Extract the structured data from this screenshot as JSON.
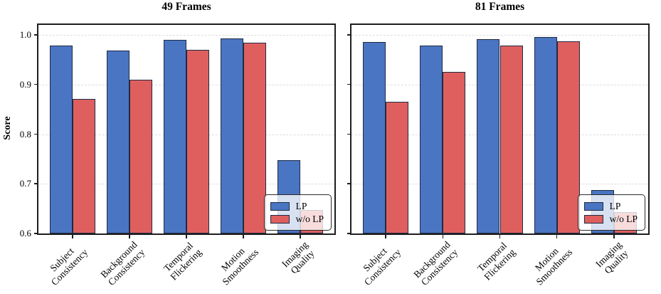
{
  "chart_data": {
    "type": "bar",
    "ylabel": "Score",
    "categories": [
      [
        "Subject",
        "Consistency"
      ],
      [
        "Background",
        "Consistency"
      ],
      [
        "Temporal",
        "Flickering"
      ],
      [
        "Motion",
        "Smoothness"
      ],
      [
        "Imaging",
        "Quality"
      ]
    ],
    "yticks": [
      0.6,
      0.7,
      0.8,
      0.9,
      1.0
    ],
    "ytick_labels": [
      "0.6",
      "0.7",
      "0.8",
      "0.9",
      "1.0"
    ],
    "ylim": [
      0.6,
      1.02
    ],
    "grid": true,
    "legend_position": "lower right",
    "series_colors": {
      "LP": "#4a75c2",
      "w/o LP": "#df5f5f"
    },
    "legend_entries": [
      "LP",
      "w/o LP"
    ],
    "panels": [
      {
        "title": "49 Frames",
        "show_ytick_labels": true,
        "series": [
          {
            "name": "LP",
            "values": [
              0.978,
              0.969,
              0.99,
              0.993,
              0.747
            ]
          },
          {
            "name": "w/o LP",
            "values": [
              0.871,
              0.909,
              0.97,
              0.984,
              0.647
            ]
          }
        ]
      },
      {
        "title": "81 Frames",
        "show_ytick_labels": false,
        "series": [
          {
            "name": "LP",
            "values": [
              0.985,
              0.979,
              0.992,
              0.995,
              0.687
            ]
          },
          {
            "name": "w/o LP",
            "values": [
              0.865,
              0.926,
              0.978,
              0.987,
              0.643
            ]
          }
        ]
      }
    ],
    "style_colors": {
      "bar_edge": "#1e2b44",
      "grid": "#dcdcdc",
      "spine": "#1e1e1e",
      "text": "#000000"
    }
  }
}
